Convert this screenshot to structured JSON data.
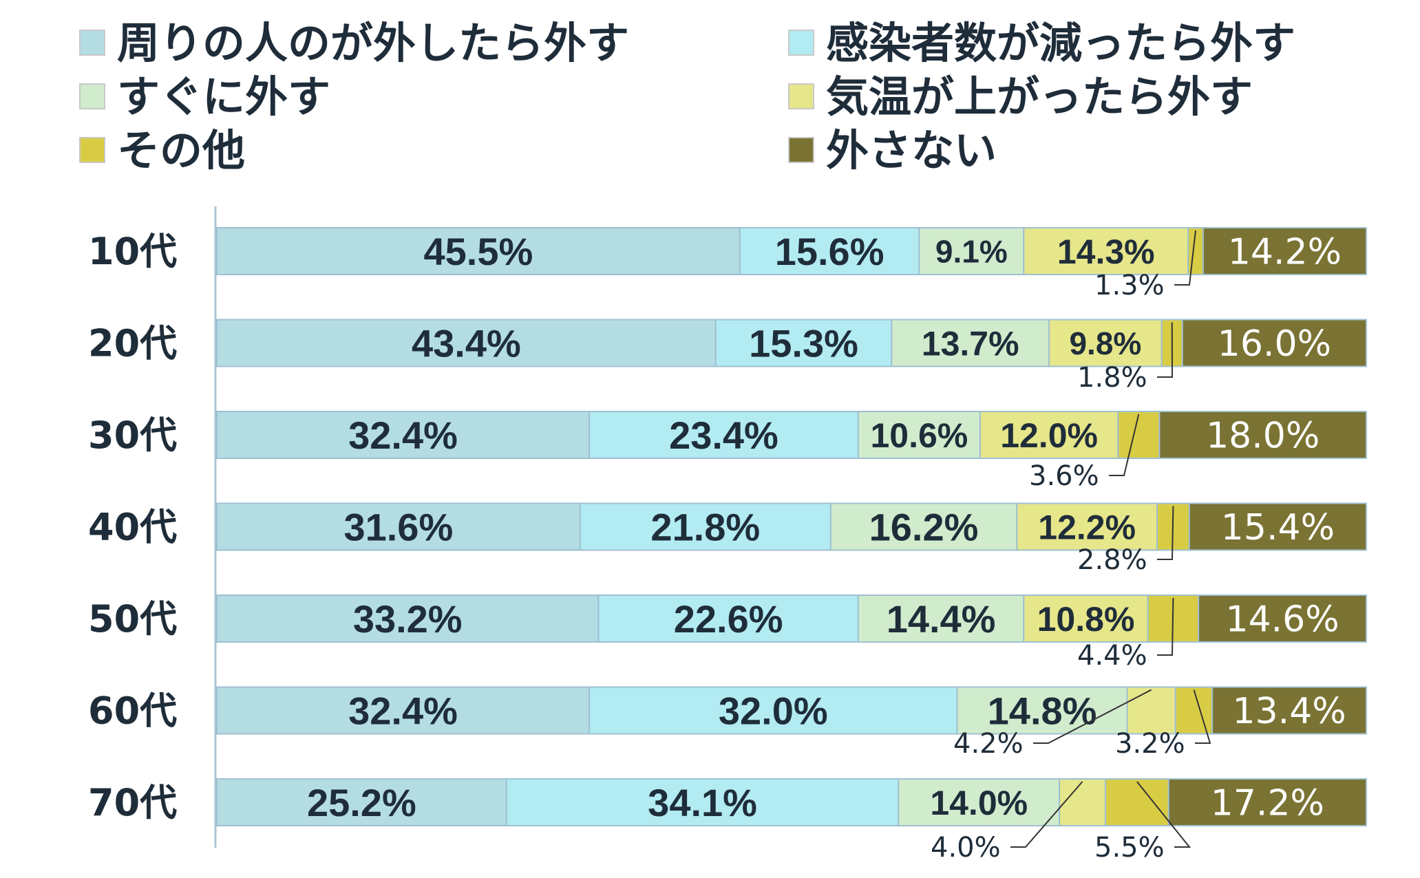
{
  "chart_data": {
    "type": "bar",
    "orientation": "horizontal",
    "stacked": true,
    "percent": true,
    "categories": [
      "10代",
      "20代",
      "30代",
      "40代",
      "50代",
      "60代",
      "70代"
    ],
    "series": [
      {
        "name": "周りの人のが外したら外す",
        "color": "#b3dde3",
        "values": [
          45.5,
          43.4,
          32.4,
          31.6,
          33.2,
          32.4,
          25.2
        ]
      },
      {
        "name": "感染者数が減ったら外す",
        "color": "#b3ebf2",
        "values": [
          15.6,
          15.3,
          23.4,
          21.8,
          22.6,
          32.0,
          34.1
        ]
      },
      {
        "name": "すぐに外す",
        "color": "#d1ebcd",
        "values": [
          9.1,
          13.7,
          10.6,
          16.2,
          14.4,
          14.8,
          14.0
        ]
      },
      {
        "name": "気温が上がったら外す",
        "color": "#e6e68a",
        "values": [
          14.3,
          9.8,
          12.0,
          12.2,
          10.8,
          4.2,
          4.0
        ]
      },
      {
        "name": "その他",
        "color": "#d9cc45",
        "values": [
          1.3,
          1.8,
          3.6,
          2.8,
          4.4,
          3.2,
          5.5
        ]
      },
      {
        "name": "外さない",
        "color": "#7a7333",
        "values": [
          14.2,
          16.0,
          18.0,
          15.4,
          14.6,
          13.4,
          17.2
        ]
      }
    ],
    "value_labels": [
      [
        "45.5%",
        "15.6%",
        "9.1%",
        "14.3%",
        "1.3%",
        "14.2%"
      ],
      [
        "43.4%",
        "15.3%",
        "13.7%",
        "9.8%",
        "1.8%",
        "16.0%"
      ],
      [
        "32.4%",
        "23.4%",
        "10.6%",
        "12.0%",
        "3.6%",
        "18.0%"
      ],
      [
        "31.6%",
        "21.8%",
        "16.2%",
        "12.2%",
        "2.8%",
        "15.4%"
      ],
      [
        "33.2%",
        "22.6%",
        "14.4%",
        "10.8%",
        "4.4%",
        "14.6%"
      ],
      [
        "32.4%",
        "32.0%",
        "14.8%",
        "4.2%",
        "3.2%",
        "13.4%"
      ],
      [
        "25.2%",
        "34.1%",
        "14.0%",
        "4.0%",
        "5.5%",
        "17.2%"
      ]
    ],
    "legend_position": "top",
    "xlim": [
      0,
      100
    ],
    "grid": false
  }
}
